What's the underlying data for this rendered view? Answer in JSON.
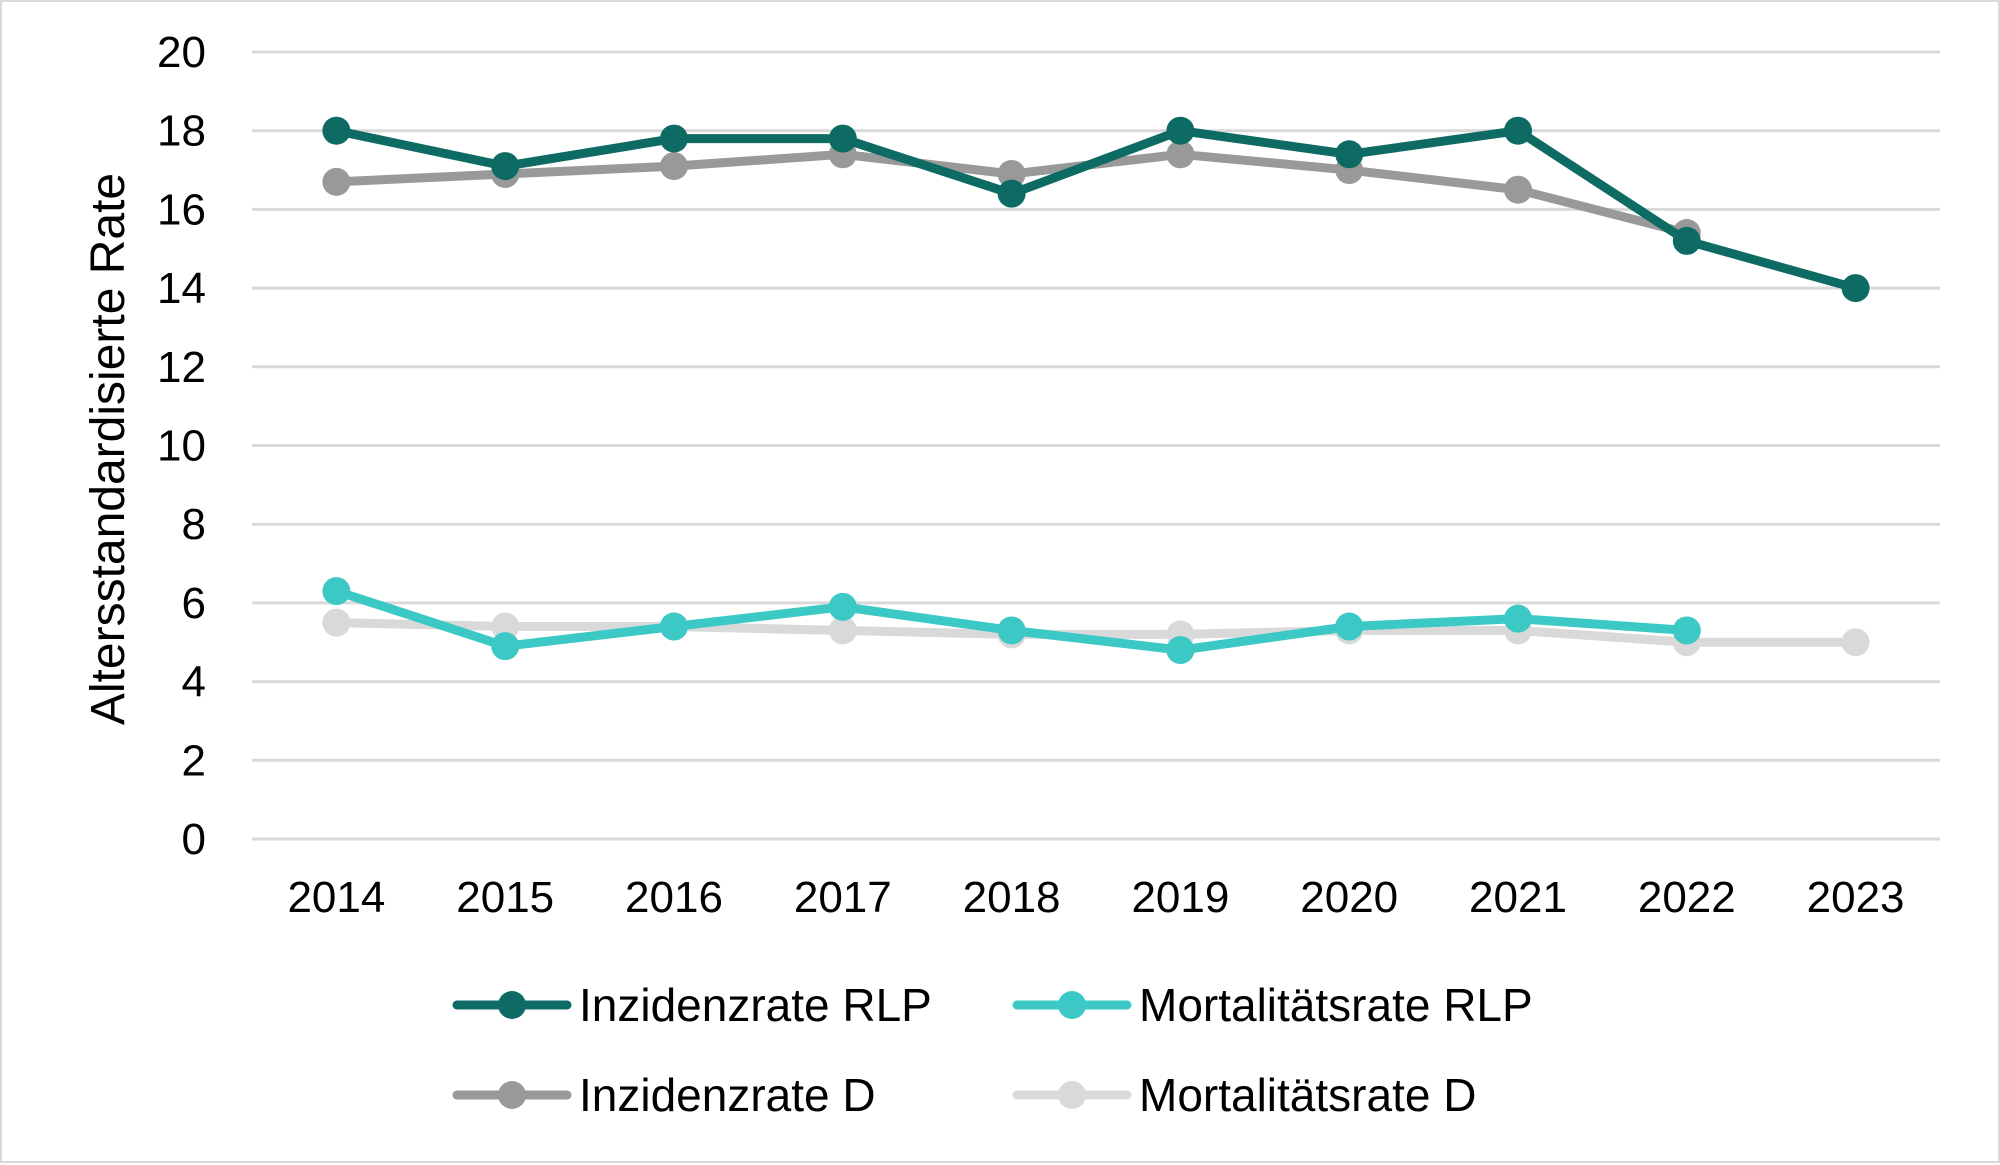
{
  "chart_data": {
    "type": "line",
    "title": "",
    "xlabel": "",
    "ylabel": "Altersstandardisierte Rate",
    "ylim": [
      0,
      20
    ],
    "yticks": [
      0,
      2,
      4,
      6,
      8,
      10,
      12,
      14,
      16,
      18,
      20
    ],
    "grid": true,
    "legend_position": "bottom",
    "categories": [
      "2014",
      "2015",
      "2016",
      "2017",
      "2018",
      "2019",
      "2020",
      "2021",
      "2022",
      "2023"
    ],
    "series": [
      {
        "name": "Inzidenzrate RLP",
        "color": "#0e6b64",
        "values": [
          18.0,
          17.1,
          17.8,
          17.8,
          16.4,
          18.0,
          17.4,
          18.0,
          15.2,
          14.0
        ]
      },
      {
        "name": "Mortalitätsrate RLP",
        "color": "#3cc9c5",
        "values": [
          6.3,
          4.9,
          5.4,
          5.9,
          5.3,
          4.8,
          5.4,
          5.6,
          5.3,
          null
        ]
      },
      {
        "name": "Inzidenzrate D",
        "color": "#999999",
        "values": [
          16.7,
          16.9,
          17.1,
          17.4,
          16.9,
          17.4,
          17.0,
          16.5,
          15.4,
          null
        ]
      },
      {
        "name": "Mortalitätsrate D",
        "color": "#d9d9d9",
        "values": [
          5.5,
          5.4,
          5.4,
          5.3,
          5.2,
          5.2,
          5.3,
          5.3,
          5.0,
          5.0
        ]
      }
    ]
  }
}
